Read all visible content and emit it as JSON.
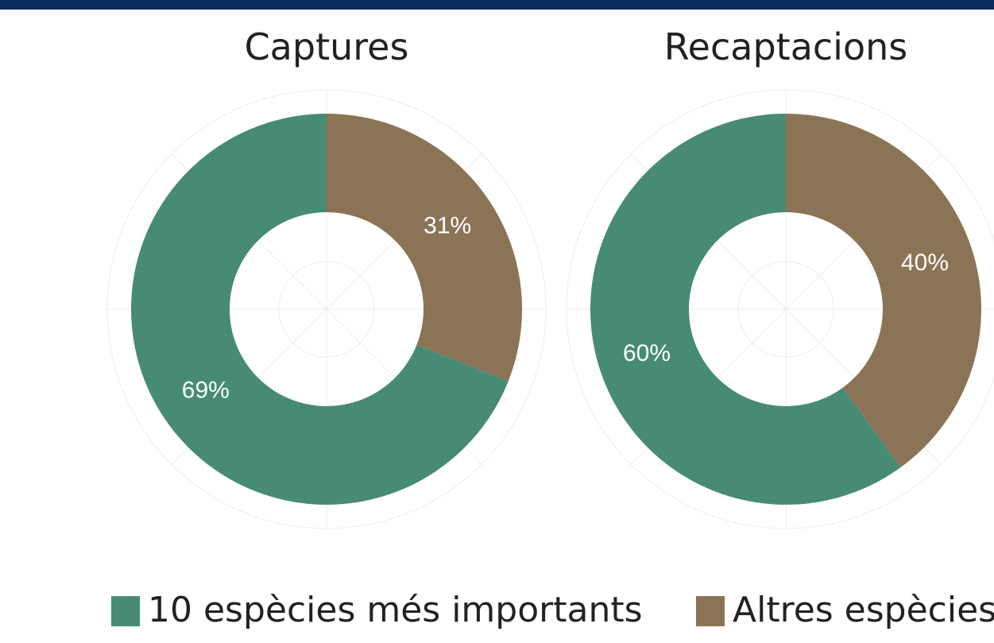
{
  "legend": {
    "labels": [
      "10 espècies més importants",
      "Altres espècies"
    ],
    "colors": [
      "#478b74",
      "#8b7355"
    ]
  },
  "chart_data": [
    {
      "type": "donut",
      "title": "Captures",
      "values": [
        69,
        31
      ],
      "value_labels": [
        "69%",
        "31%"
      ]
    },
    {
      "type": "donut",
      "title": "Recaptacions",
      "values": [
        60,
        40
      ],
      "value_labels": [
        "60%",
        "40%"
      ]
    }
  ]
}
